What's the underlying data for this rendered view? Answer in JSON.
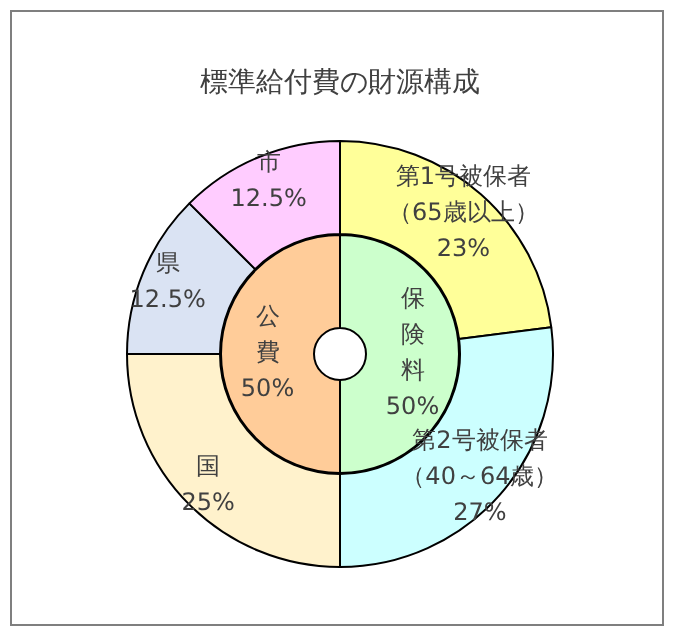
{
  "chart_data": [
    {
      "type": "donut",
      "title": "標準給付費の財源構成",
      "categories": [
        "第1号被保者（65歳以上）",
        "第2号被保者（40～64歳）",
        "国",
        "県",
        "市"
      ],
      "values": [
        23,
        27,
        25,
        12.5,
        12.5
      ],
      "value_labels": [
        "23%",
        "27%",
        "25%",
        "12.5%",
        "12.5%"
      ],
      "colors": [
        "#ffff99",
        "#ccffff",
        "#fff2cc",
        "#dae3f3",
        "#ffccff"
      ]
    },
    {
      "type": "donut",
      "categories": [
        "保険料",
        "公費"
      ],
      "values": [
        50,
        50
      ],
      "value_labels": [
        "50%",
        "50%"
      ],
      "colors": [
        "#ccffcc",
        "#ffcc99"
      ]
    }
  ]
}
